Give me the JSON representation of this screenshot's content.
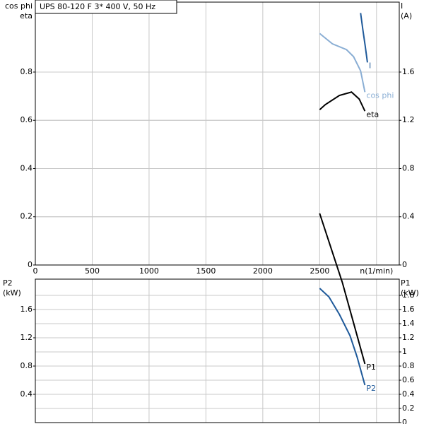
{
  "chart_data": [
    {
      "type": "line",
      "title": "UPS 80-120 F    3* 400 V, 50 Hz",
      "ylabel": [
        "cos phi",
        "eta"
      ],
      "y2label": [
        "I",
        "(A)"
      ],
      "xlim": [
        0,
        3200
      ],
      "xticks": [
        0,
        500,
        1000,
        1500,
        2000,
        2500,
        {
          "value": 3000,
          "label": "n(1/min)"
        }
      ],
      "ylim": [
        0,
        1.09
      ],
      "yticks": [
        0,
        0.2,
        0.4,
        0.6,
        0.8
      ],
      "y2lim": [
        0,
        2.18
      ],
      "y2ticks": [
        0,
        0.4,
        0.8,
        1.2,
        1.6
      ],
      "grid": true,
      "series": [
        {
          "name": "I",
          "color": "#1f5a9a",
          "axis": "y2",
          "x": [
            2860,
            2880,
            2900,
            2920
          ],
          "values": [
            2.09,
            1.95,
            1.82,
            1.68
          ]
        },
        {
          "name": "cos phi",
          "color": "#8aaed4",
          "x": [
            2500,
            2612,
            2736,
            2798,
            2860,
            2898
          ],
          "values": [
            0.96,
            0.917,
            0.893,
            0.864,
            0.805,
            0.717
          ]
        },
        {
          "name": "eta",
          "color": "#000000",
          "x": [
            2500,
            2550,
            2674,
            2780,
            2848,
            2898
          ],
          "values": [
            0.644,
            0.665,
            0.703,
            0.717,
            0.688,
            0.638
          ]
        }
      ]
    },
    {
      "type": "line",
      "ylabel": [
        "P2",
        "(kW)"
      ],
      "y2label": [
        "P1",
        "(kW)"
      ],
      "xlim": [
        0,
        3200
      ],
      "ylim": [
        0,
        2.03
      ],
      "yticks": [
        0.4,
        0.8,
        1.2,
        1.6
      ],
      "y2lim": [
        0,
        2.03
      ],
      "y2ticks": [
        0,
        0.2,
        0.4,
        0.6,
        0.8,
        1,
        1.2,
        1.4,
        1.6,
        1.8
      ],
      "grid": true,
      "series": [
        {
          "name": "P1",
          "color": "#000000",
          "axis": "y2",
          "x": [
            2500,
            2700,
            2898
          ],
          "values": [
            2.96,
            1.98,
            0.83
          ]
        },
        {
          "name": "P2",
          "color": "#1f5a9a",
          "x": [
            2500,
            2581,
            2674,
            2767,
            2829,
            2898
          ],
          "values": [
            1.9,
            1.78,
            1.53,
            1.23,
            0.93,
            0.53
          ]
        }
      ]
    }
  ]
}
